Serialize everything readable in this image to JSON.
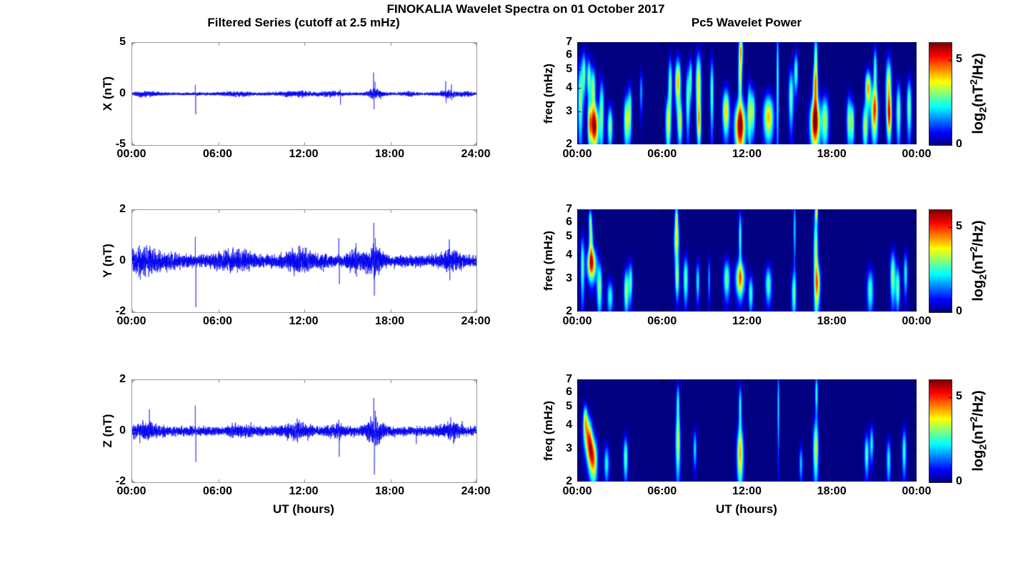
{
  "figure": {
    "title": "FINOKALIA Wavelet Spectra on 01 October 2017",
    "left_title": "Filtered Series (cutoff at 2.5 mHz)",
    "right_title": "Pc5 Wavelet Power",
    "xlabel": "UT (hours)",
    "colorbar_label": {
      "p1": "log",
      "sub": "2",
      "p2": "(nT",
      "sup": "2",
      "p3": "/Hz)"
    },
    "colors": {
      "line_blue": "#0000ee",
      "axis_gray": "#9a9a9a",
      "spectrogram_background": "#000080",
      "colorbar_max": "#800000",
      "text": "#000000"
    }
  },
  "chart_data": [
    {
      "id": "x-filtered-series",
      "type": "line",
      "ylabel": "X (nT)",
      "ylim": [
        -5,
        5
      ],
      "yticks": [
        5,
        0,
        -5
      ],
      "xlim_hours": [
        0,
        24
      ],
      "xticks": [
        "00:00",
        "06:00",
        "12:00",
        "18:00",
        "24:00"
      ],
      "noise_base": 0.07,
      "seed": 11,
      "bursts": [
        [
          1.0,
          0.6,
          0.08
        ],
        [
          7.3,
          0.7,
          0.08
        ],
        [
          11.4,
          0.9,
          0.1
        ],
        [
          13.8,
          0.5,
          0.08
        ],
        [
          16.9,
          0.35,
          0.25
        ],
        [
          19.3,
          0.3,
          0.06
        ],
        [
          22.0,
          0.45,
          0.14
        ],
        [
          23.3,
          0.3,
          0.08
        ]
      ],
      "spikes": [
        [
          4.4,
          0.9
        ],
        [
          4.43,
          -2.0
        ],
        [
          14.5,
          0.45
        ],
        [
          14.52,
          -1.05
        ],
        [
          16.82,
          2.1
        ],
        [
          16.86,
          -1.5
        ],
        [
          16.92,
          1.2
        ],
        [
          21.85,
          1.25
        ],
        [
          21.88,
          -0.9
        ],
        [
          22.25,
          0.95
        ],
        [
          22.28,
          -0.6
        ]
      ]
    },
    {
      "id": "x-wavelet-spectrogram",
      "type": "heatmap",
      "ylabel": "freq (mHz)",
      "ylim_mhz": [
        2,
        7
      ],
      "yscale": "log",
      "yticks": [
        7,
        6,
        5,
        4,
        3,
        2
      ],
      "xlim_hours": [
        0,
        24
      ],
      "xticks": [
        "00:00",
        "06:00",
        "12:00",
        "18:00",
        "00:00"
      ],
      "colorbar": {
        "ticks": [
          5,
          0
        ],
        "range": [
          0,
          6
        ]
      },
      "blobs": [
        [
          0.2,
          3.5,
          0.12,
          1.2,
          3.2
        ],
        [
          0.45,
          4.8,
          0.1,
          0.9,
          2.9
        ],
        [
          0.8,
          4.5,
          0.1,
          0.8,
          3.0
        ],
        [
          0.85,
          2.6,
          0.1,
          0.5,
          3.2
        ],
        [
          1.2,
          2.5,
          0.2,
          0.45,
          5.7
        ],
        [
          1.1,
          3.9,
          0.12,
          0.8,
          3.4
        ],
        [
          1.7,
          3.0,
          0.12,
          0.9,
          3.0
        ],
        [
          2.3,
          2.5,
          0.13,
          0.45,
          3.2
        ],
        [
          3.45,
          2.7,
          0.13,
          0.6,
          3.4
        ],
        [
          3.7,
          3.0,
          0.1,
          0.7,
          2.8
        ],
        [
          4.5,
          3.8,
          0.08,
          0.7,
          1.8
        ],
        [
          6.4,
          2.6,
          0.13,
          0.6,
          3.4
        ],
        [
          6.55,
          4.2,
          0.1,
          1.0,
          3.0
        ],
        [
          7.1,
          4.3,
          0.14,
          0.9,
          4.3
        ],
        [
          7.25,
          2.6,
          0.12,
          0.5,
          3.2
        ],
        [
          7.8,
          3.5,
          0.1,
          1.0,
          2.9
        ],
        [
          8.0,
          4.5,
          0.08,
          0.8,
          2.6
        ],
        [
          8.55,
          4.2,
          0.13,
          1.2,
          4.0
        ],
        [
          8.6,
          2.6,
          0.1,
          0.5,
          2.9
        ],
        [
          9.5,
          3.8,
          0.09,
          1.2,
          2.9
        ],
        [
          10.5,
          3.0,
          0.17,
          0.6,
          4.1
        ],
        [
          11.5,
          2.5,
          0.26,
          0.55,
          6.0
        ],
        [
          11.5,
          4.5,
          0.1,
          1.0,
          3.3
        ],
        [
          11.55,
          6.4,
          0.1,
          0.8,
          4.0
        ],
        [
          12.15,
          3.0,
          0.1,
          0.8,
          3.0
        ],
        [
          12.4,
          3.0,
          0.12,
          0.6,
          3.0
        ],
        [
          13.5,
          2.8,
          0.25,
          0.55,
          4.2
        ],
        [
          14.15,
          4.5,
          0.06,
          2.2,
          2.8
        ],
        [
          15.1,
          3.6,
          0.12,
          0.9,
          3.0
        ],
        [
          15.45,
          4.9,
          0.1,
          0.8,
          2.9
        ],
        [
          16.8,
          2.6,
          0.24,
          0.55,
          5.8
        ],
        [
          16.82,
          4.0,
          0.12,
          0.8,
          4.0
        ],
        [
          16.85,
          5.9,
          0.09,
          1.1,
          3.1
        ],
        [
          17.5,
          2.7,
          0.18,
          0.6,
          3.3
        ],
        [
          19.2,
          2.7,
          0.12,
          0.6,
          3.0
        ],
        [
          19.45,
          2.6,
          0.1,
          0.5,
          2.8
        ],
        [
          20.35,
          2.5,
          0.14,
          0.5,
          3.4
        ],
        [
          20.55,
          4.0,
          0.14,
          0.6,
          4.4
        ],
        [
          21.0,
          3.0,
          0.17,
          0.7,
          4.8
        ],
        [
          21.05,
          5.0,
          0.09,
          1.0,
          2.8
        ],
        [
          22.0,
          4.0,
          0.14,
          1.1,
          4.0
        ],
        [
          22.05,
          2.8,
          0.12,
          0.5,
          3.3
        ],
        [
          22.7,
          3.0,
          0.12,
          0.8,
          3.0
        ],
        [
          23.45,
          3.2,
          0.12,
          0.8,
          3.1
        ]
      ]
    },
    {
      "id": "y-filtered-series",
      "type": "line",
      "ylabel": "Y (nT)",
      "ylim": [
        -2,
        2
      ],
      "yticks": [
        2,
        0,
        -2
      ],
      "xlim_hours": [
        0,
        24
      ],
      "xticks": [
        "00:00",
        "06:00",
        "12:00",
        "18:00",
        "24:00"
      ],
      "noise_base": 0.11,
      "seed": 23,
      "bursts": [
        [
          0.8,
          0.9,
          0.18
        ],
        [
          3.0,
          0.4,
          0.05
        ],
        [
          6.5,
          0.8,
          0.08
        ],
        [
          7.8,
          0.6,
          0.08
        ],
        [
          11.4,
          0.7,
          0.12
        ],
        [
          13.0,
          0.5,
          0.06
        ],
        [
          15.5,
          0.5,
          0.12
        ],
        [
          16.9,
          0.4,
          0.22
        ],
        [
          22.2,
          0.5,
          0.12
        ]
      ],
      "spikes": [
        [
          4.4,
          0.95
        ],
        [
          4.44,
          -1.8
        ],
        [
          11.6,
          0.6
        ],
        [
          14.4,
          0.9
        ],
        [
          14.44,
          -0.9
        ],
        [
          15.6,
          0.7
        ],
        [
          15.63,
          -0.6
        ],
        [
          16.84,
          1.5
        ],
        [
          16.88,
          -1.35
        ],
        [
          16.95,
          0.9
        ],
        [
          22.1,
          0.85
        ],
        [
          22.14,
          -0.75
        ]
      ]
    },
    {
      "id": "y-wavelet-spectrogram",
      "type": "heatmap",
      "ylabel": "freq (mHz)",
      "ylim_mhz": [
        2,
        7
      ],
      "yscale": "log",
      "yticks": [
        7,
        6,
        5,
        4,
        3,
        2
      ],
      "xlim_hours": [
        0,
        24
      ],
      "xticks": [
        "00:00",
        "06:00",
        "12:00",
        "18:00",
        "00:00"
      ],
      "colorbar": {
        "ticks": [
          5,
          0
        ],
        "range": [
          0,
          6
        ]
      },
      "blobs": [
        [
          0.35,
          3.5,
          0.1,
          1.0,
          2.8
        ],
        [
          0.9,
          6.2,
          0.08,
          0.6,
          2.4
        ],
        [
          0.95,
          4.8,
          0.1,
          0.8,
          3.0
        ],
        [
          1.0,
          3.6,
          0.22,
          0.5,
          5.0
        ],
        [
          1.55,
          2.7,
          0.13,
          0.6,
          3.2
        ],
        [
          2.3,
          2.4,
          0.15,
          0.35,
          2.5
        ],
        [
          3.45,
          2.6,
          0.12,
          0.5,
          3.3
        ],
        [
          3.75,
          2.9,
          0.1,
          0.5,
          2.7
        ],
        [
          7.0,
          4.8,
          0.12,
          0.9,
          3.8
        ],
        [
          7.0,
          6.5,
          0.08,
          0.7,
          2.6
        ],
        [
          7.05,
          3.0,
          0.1,
          0.5,
          3.0
        ],
        [
          7.65,
          3.0,
          0.12,
          0.6,
          3.0
        ],
        [
          8.5,
          2.9,
          0.09,
          0.5,
          2.4
        ],
        [
          9.3,
          3.0,
          0.06,
          0.6,
          1.8
        ],
        [
          10.55,
          3.0,
          0.16,
          0.5,
          3.0
        ],
        [
          11.5,
          3.0,
          0.22,
          0.45,
          4.3
        ],
        [
          11.5,
          5.0,
          0.08,
          1.2,
          2.6
        ],
        [
          12.25,
          2.5,
          0.12,
          0.4,
          2.6
        ],
        [
          13.5,
          2.8,
          0.16,
          0.45,
          2.8
        ],
        [
          15.3,
          2.5,
          0.12,
          0.5,
          2.8
        ],
        [
          15.35,
          5.5,
          0.06,
          1.5,
          2.2
        ],
        [
          16.85,
          4.0,
          0.11,
          1.8,
          3.5
        ],
        [
          16.9,
          6.8,
          0.07,
          0.5,
          3.0
        ],
        [
          17.0,
          2.8,
          0.13,
          0.5,
          3.2
        ],
        [
          20.7,
          2.6,
          0.16,
          0.5,
          2.7
        ],
        [
          22.3,
          3.1,
          0.13,
          0.7,
          3.2
        ],
        [
          22.65,
          2.7,
          0.11,
          0.5,
          3.0
        ],
        [
          23.2,
          3.2,
          0.1,
          0.6,
          2.4
        ]
      ]
    },
    {
      "id": "z-filtered-series",
      "type": "line",
      "ylabel": "Z (nT)",
      "ylim": [
        -2,
        2
      ],
      "yticks": [
        2,
        0,
        -2
      ],
      "xlim_hours": [
        0,
        24
      ],
      "xticks": [
        "00:00",
        "06:00",
        "12:00",
        "18:00",
        "24:00"
      ],
      "noise_base": 0.09,
      "seed": 37,
      "bursts": [
        [
          0.9,
          0.7,
          0.1
        ],
        [
          7.5,
          0.6,
          0.06
        ],
        [
          11.4,
          0.6,
          0.1
        ],
        [
          14.3,
          0.4,
          0.06
        ],
        [
          16.9,
          0.4,
          0.2
        ],
        [
          22.2,
          0.5,
          0.1
        ]
      ],
      "spikes": [
        [
          1.2,
          0.85
        ],
        [
          4.4,
          1.0
        ],
        [
          4.44,
          -1.2
        ],
        [
          11.5,
          0.5
        ],
        [
          11.53,
          -0.45
        ],
        [
          14.4,
          0.45
        ],
        [
          14.43,
          -1.0
        ],
        [
          16.84,
          1.3
        ],
        [
          16.88,
          -1.7
        ],
        [
          16.94,
          0.8
        ],
        [
          19.8,
          -0.5
        ],
        [
          22.2,
          0.55
        ],
        [
          22.4,
          -0.5
        ],
        [
          23.0,
          0.4
        ]
      ]
    },
    {
      "id": "z-wavelet-spectrogram",
      "type": "heatmap",
      "ylabel": "freq (mHz)",
      "ylim_mhz": [
        2,
        7
      ],
      "yscale": "log",
      "yticks": [
        7,
        6,
        5,
        4,
        3,
        2
      ],
      "xlim_hours": [
        0,
        24
      ],
      "xticks": [
        "00:00",
        "06:00",
        "12:00",
        "18:00",
        "00:00"
      ],
      "colorbar": {
        "ticks": [
          5,
          0
        ],
        "range": [
          0,
          6
        ]
      },
      "blobs": [
        [
          0.55,
          4.4,
          0.1,
          0.5,
          2.8
        ],
        [
          0.7,
          3.6,
          0.2,
          0.6,
          3.8
        ],
        [
          0.9,
          3.0,
          0.15,
          0.5,
          3.4
        ],
        [
          1.15,
          2.6,
          0.18,
          0.5,
          4.1
        ],
        [
          2.05,
          2.5,
          0.13,
          0.4,
          2.4
        ],
        [
          3.4,
          2.7,
          0.11,
          0.5,
          3.0
        ],
        [
          7.1,
          3.2,
          0.12,
          0.9,
          3.4
        ],
        [
          7.1,
          5.3,
          0.08,
          0.9,
          2.4
        ],
        [
          8.3,
          3.0,
          0.09,
          0.5,
          2.2
        ],
        [
          11.5,
          2.8,
          0.16,
          0.7,
          4.1
        ],
        [
          11.5,
          5.0,
          0.08,
          1.0,
          2.5
        ],
        [
          14.2,
          5.0,
          0.05,
          1.9,
          2.3
        ],
        [
          15.8,
          2.5,
          0.09,
          0.4,
          2.0
        ],
        [
          16.85,
          3.0,
          0.13,
          0.8,
          3.6
        ],
        [
          16.9,
          5.9,
          0.07,
          1.0,
          2.7
        ],
        [
          20.45,
          2.8,
          0.11,
          0.5,
          2.8
        ],
        [
          20.8,
          3.2,
          0.09,
          0.5,
          2.4
        ],
        [
          22.0,
          2.6,
          0.11,
          0.5,
          2.4
        ],
        [
          23.1,
          2.9,
          0.11,
          0.6,
          2.6
        ]
      ]
    }
  ]
}
